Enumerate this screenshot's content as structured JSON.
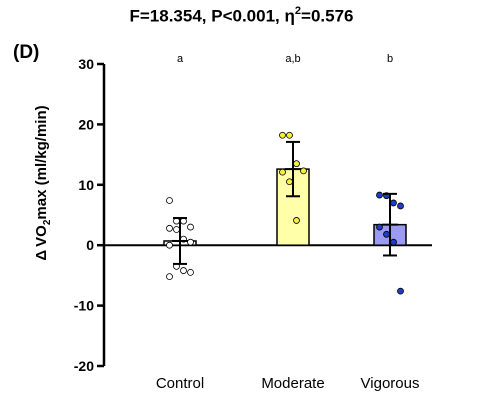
{
  "chart_data": {
    "type": "bar",
    "title": {
      "main": "F=18.354, P<0.001, η",
      "exponent": "2",
      "suffix": "=0.576"
    },
    "panel_label": "(D)",
    "ylabel": {
      "delta": "Δ",
      "vo": "VO",
      "sub": "2",
      "rest": "max (ml/kg/min)"
    },
    "ylim": [
      -20,
      30
    ],
    "yticks": [
      30,
      20,
      10,
      0,
      -10,
      -20
    ],
    "categories": [
      "Control",
      "Moderate",
      "Vigorous"
    ],
    "means": [
      0.7,
      12.6,
      3.4
    ],
    "sd": [
      3.8,
      4.5,
      5.1
    ],
    "significance_letters": [
      "a",
      "a,b",
      "b"
    ],
    "bar_fill": [
      "#ffffff",
      "#ffffaa",
      "#9b9bf5"
    ],
    "point_fill": [
      "#ffffff",
      "#f3ef3a",
      "#1f3dc8"
    ],
    "points": [
      [
        7.4,
        4.0,
        4.0,
        3.0,
        2.8,
        2.6,
        1.0,
        0.5,
        0.0,
        -3.5,
        -4.2,
        -4.5,
        -5.2
      ],
      [
        18.2,
        18.2,
        13.5,
        12.3,
        12.1,
        10.5,
        4.1
      ],
      [
        8.3,
        8.2,
        7.0,
        6.5,
        3.0,
        1.8,
        0.5,
        -7.6
      ]
    ]
  }
}
